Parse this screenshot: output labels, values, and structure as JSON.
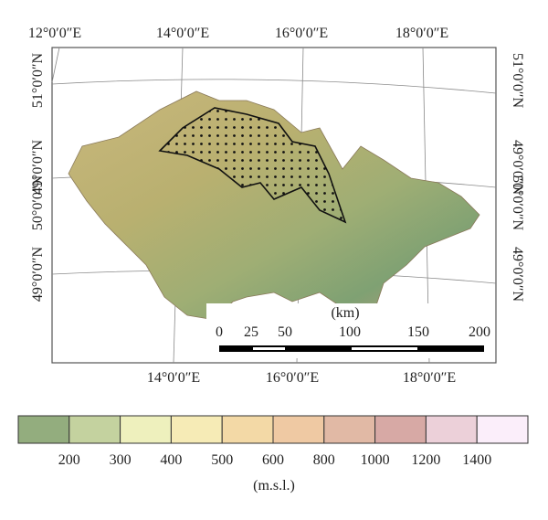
{
  "map": {
    "top_labels": [
      "12°0′0″E",
      "14°0′0″E",
      "16°0′0″E",
      "18°0′0″E"
    ],
    "bottom_labels": [
      "14°0′0″E",
      "16°0′0″E",
      "18°0′0″E"
    ],
    "left_labels": [
      "51°0′0″N",
      "49°0′0″N",
      "50°0′0″N",
      "49°0′0″N"
    ],
    "right_labels": [
      "51°0′0″N",
      "49°0′0″N",
      "50°0′0″N",
      "49°0′0″N"
    ],
    "scale": {
      "unit": "(km)",
      "labels": [
        "0",
        "25",
        "50",
        "100",
        "150",
        "200"
      ]
    }
  },
  "legend": {
    "colors": [
      "#93ad7e",
      "#c4d29f",
      "#eef0bd",
      "#f6ebb6",
      "#f3d9a6",
      "#efc9a3",
      "#e1b9a5",
      "#d7a9a5",
      "#ecd0d9",
      "#fbeefa"
    ],
    "labels": [
      "200",
      "300",
      "400",
      "500",
      "600",
      "800",
      "1000",
      "1200",
      "1400"
    ],
    "unit": "(m.s.l.)"
  }
}
